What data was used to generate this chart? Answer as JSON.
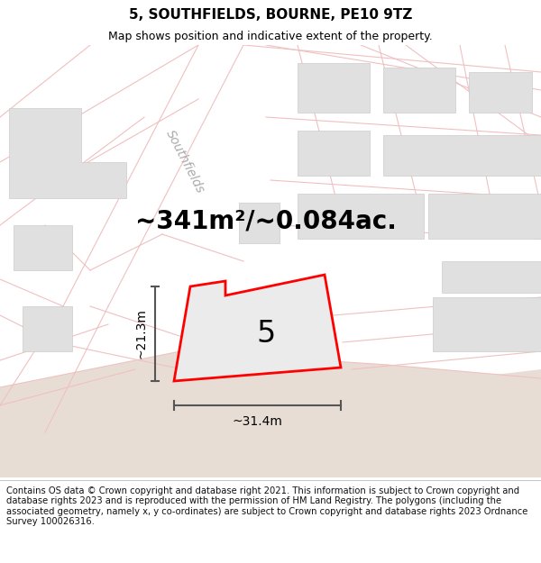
{
  "title_line1": "5, SOUTHFIELDS, BOURNE, PE10 9TZ",
  "title_line2": "Map shows position and indicative extent of the property.",
  "area_text": "~341m²/~0.084ac.",
  "dim_vertical": "~21.3m",
  "dim_horizontal": "~31.4m",
  "property_number": "5",
  "footer_text": "Contains OS data © Crown copyright and database right 2021. This information is subject to Crown copyright and database rights 2023 and is reproduced with the permission of HM Land Registry. The polygons (including the associated geometry, namely x, y co-ordinates) are subject to Crown copyright and database rights 2023 Ordnance Survey 100026316.",
  "map_bg": "#f2f0f0",
  "road_color": "#f0c0c0",
  "road_fill": "#f5f0f0",
  "property_fill": "#ebebeb",
  "property_edge": "#ff0000",
  "tan_fill": "#e8ddd5",
  "building_fill": "#e0e0e0",
  "building_stroke": "#cccccc",
  "dim_line_color": "#555555",
  "title_fontsize": 11,
  "subtitle_fontsize": 9,
  "area_fontsize": 20,
  "dim_fontsize": 10,
  "property_num_fontsize": 24,
  "footer_fontsize": 7.2,
  "southfields_fontsize": 10
}
